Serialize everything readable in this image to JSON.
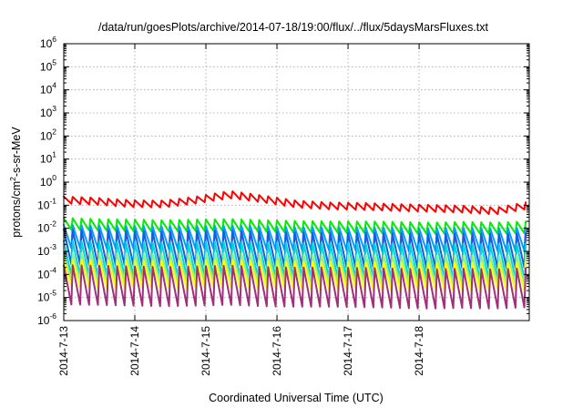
{
  "chart_data": {
    "type": "line",
    "title": "/data/run/goesPlots/archive/2014-07-18/19:00/flux/../flux/5daysMarsFluxes.txt",
    "xlabel": "Coordinated Universal Time (UTC)",
    "ylabel": "protons/cm2-s-sr-MeV",
    "ylabel_parts": [
      "protons/cm",
      "2",
      "-s-sr-MeV"
    ],
    "yscale": "log",
    "ylim": [
      1e-06,
      1000000.0
    ],
    "xlim_days": [
      0,
      6.55
    ],
    "xticks": [
      {
        "day": 0,
        "label": "2014-7-13"
      },
      {
        "day": 1,
        "label": "2014-7-14"
      },
      {
        "day": 2,
        "label": "2014-7-15"
      },
      {
        "day": 3,
        "label": "2014-7-16"
      },
      {
        "day": 4,
        "label": "2014-7-17"
      },
      {
        "day": 5,
        "label": "2014-7-18"
      }
    ],
    "yticks": [
      {
        "exp": -6,
        "label": "10",
        "sup": "-6"
      },
      {
        "exp": -5,
        "label": "10",
        "sup": "-5"
      },
      {
        "exp": -4,
        "label": "10",
        "sup": "-4"
      },
      {
        "exp": -3,
        "label": "10",
        "sup": "-3"
      },
      {
        "exp": -2,
        "label": "10",
        "sup": "-2"
      },
      {
        "exp": -1,
        "label": "10",
        "sup": "-1"
      },
      {
        "exp": 0,
        "label": "10",
        "sup": "0"
      },
      {
        "exp": 1,
        "label": "10",
        "sup": "1"
      },
      {
        "exp": 2,
        "label": "10",
        "sup": "2"
      },
      {
        "exp": 3,
        "label": "10",
        "sup": "3"
      },
      {
        "exp": 4,
        "label": "10",
        "sup": "4"
      },
      {
        "exp": 5,
        "label": "10",
        "sup": "5"
      },
      {
        "exp": 6,
        "label": "10",
        "sup": "6"
      }
    ],
    "grid": true,
    "legend": "none",
    "sawtooth_period_days": 0.125,
    "series": [
      {
        "color": "#ff0000",
        "peak_log": [
          -0.62,
          -0.68,
          -0.78,
          -0.8,
          -0.62,
          -0.38,
          -0.58,
          -0.8,
          -0.88,
          -0.9,
          -0.95,
          -0.98,
          -1.02,
          -1.1,
          -0.85
        ],
        "trough_log": [
          -0.92,
          -0.98,
          -1.08,
          -1.1,
          -0.92,
          -0.7,
          -0.88,
          -1.1,
          -1.18,
          -1.2,
          -1.25,
          -1.28,
          -1.32,
          -1.4,
          -1.15
        ]
      },
      {
        "color": "#00ee00",
        "peak_log": [
          -1.55,
          -1.6,
          -1.62,
          -1.65,
          -1.62,
          -1.6,
          -1.65,
          -1.68,
          -1.7,
          -1.7,
          -1.72,
          -1.75,
          -1.72,
          -1.75,
          -1.7
        ],
        "trough_log": [
          -2.05,
          -2.1,
          -2.12,
          -2.15,
          -2.12,
          -2.1,
          -2.15,
          -2.18,
          -2.2,
          -2.2,
          -2.22,
          -2.25,
          -2.22,
          -2.25,
          -2.2
        ]
      },
      {
        "color": "#00a0ff",
        "peak_log": [
          -1.85,
          -1.88,
          -1.9,
          -1.92,
          -1.9,
          -1.88,
          -1.92,
          -1.95,
          -1.95,
          -1.97,
          -1.98,
          -2.0,
          -1.98,
          -2.0,
          -1.97
        ],
        "trough_log": [
          -2.85,
          -2.88,
          -2.9,
          -2.92,
          -2.9,
          -2.88,
          -2.92,
          -2.95,
          -2.95,
          -2.97,
          -2.98,
          -3.0,
          -2.98,
          -3.0,
          -2.97
        ]
      },
      {
        "color": "#1e5adc",
        "peak_log": [
          -2.05,
          -2.1,
          -2.12,
          -2.15,
          -2.12,
          -2.1,
          -2.15,
          -2.18,
          -2.2,
          -2.2,
          -2.22,
          -2.25,
          -2.22,
          -2.25,
          -2.2
        ],
        "trough_log": [
          -3.55,
          -3.6,
          -3.62,
          -3.65,
          -3.62,
          -3.6,
          -3.65,
          -3.68,
          -3.7,
          -3.7,
          -3.72,
          -3.75,
          -3.72,
          -3.75,
          -3.7
        ]
      },
      {
        "color": "#00d8d8",
        "peak_log": [
          -2.55,
          -2.58,
          -2.6,
          -2.62,
          -2.6,
          -2.58,
          -2.62,
          -2.65,
          -2.65,
          -2.67,
          -2.68,
          -2.7,
          -2.68,
          -2.7,
          -2.67
        ],
        "trough_log": [
          -4.05,
          -4.08,
          -4.1,
          -4.12,
          -4.1,
          -4.08,
          -4.12,
          -4.15,
          -4.15,
          -4.17,
          -4.18,
          -4.2,
          -4.18,
          -4.2,
          -4.17
        ]
      },
      {
        "color": "#90ee90",
        "peak_log": [
          -3.05,
          -3.08,
          -3.1,
          -3.12,
          -3.1,
          -3.08,
          -3.12,
          -3.15,
          -3.15,
          -3.17,
          -3.18,
          -3.2,
          -3.18,
          -3.2,
          -3.17
        ],
        "trough_log": [
          -4.25,
          -4.28,
          -4.3,
          -4.32,
          -4.3,
          -4.28,
          -4.32,
          -4.35,
          -4.35,
          -4.37,
          -4.38,
          -4.4,
          -4.38,
          -4.4,
          -4.37
        ]
      },
      {
        "color": "#ffff00",
        "peak_log": [
          -3.35,
          -3.38,
          -3.4,
          -3.42,
          -3.4,
          -3.38,
          -3.42,
          -3.45,
          -3.45,
          -3.47,
          -3.48,
          -3.5,
          -3.48,
          -3.5,
          -3.47
        ],
        "trough_log": [
          -4.55,
          -4.58,
          -4.6,
          -4.62,
          -4.6,
          -4.58,
          -4.62,
          -4.65,
          -4.65,
          -4.67,
          -4.68,
          -4.7,
          -4.68,
          -4.7,
          -4.67
        ]
      },
      {
        "color": "#a0307a",
        "peak_log": [
          -3.6,
          -3.62,
          -3.65,
          -3.68,
          -3.65,
          -3.62,
          -3.68,
          -3.7,
          -3.7,
          -3.72,
          -3.75,
          -3.78,
          -3.75,
          -3.78,
          -3.72
        ],
        "trough_log": [
          -5.3,
          -5.32,
          -5.35,
          -5.38,
          -5.35,
          -5.32,
          -5.38,
          -5.4,
          -5.4,
          -5.42,
          -5.45,
          -5.48,
          -5.45,
          -5.48,
          -5.42
        ]
      }
    ]
  }
}
